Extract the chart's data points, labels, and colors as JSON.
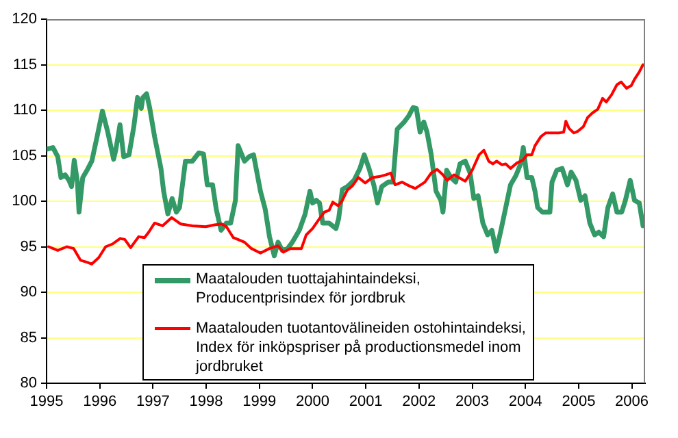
{
  "chart_data": {
    "type": "line",
    "xlim": [
      1995,
      2006.25
    ],
    "xticks": [
      1995,
      1996,
      1997,
      1998,
      1999,
      2000,
      2001,
      2002,
      2003,
      2004,
      2005,
      2006
    ],
    "ylim": [
      80,
      120
    ],
    "yticks": [
      80,
      85,
      90,
      95,
      100,
      105,
      110,
      115,
      120
    ],
    "grid": "y",
    "legend": "bottom",
    "marker": "none",
    "line_style": "solid",
    "series": [
      {
        "name": "Maatalouden tuottajahintaindeksi, Producentprisindex för jordbruk",
        "color": "#339966",
        "x": [
          1995.0,
          1995.12,
          1995.21,
          1995.27,
          1995.35,
          1995.42,
          1995.47,
          1995.52,
          1995.58,
          1995.61,
          1995.68,
          1995.76,
          1995.85,
          1995.95,
          1996.05,
          1996.15,
          1996.26,
          1996.3,
          1996.38,
          1996.45,
          1996.55,
          1996.64,
          1996.71,
          1996.78,
          1996.81,
          1996.88,
          1996.94,
          1997.03,
          1997.15,
          1997.2,
          1997.28,
          1997.36,
          1997.44,
          1997.5,
          1997.61,
          1997.74,
          1997.86,
          1997.95,
          1998.02,
          1998.12,
          1998.19,
          1998.28,
          1998.38,
          1998.46,
          1998.55,
          1998.6,
          1998.72,
          1998.81,
          1998.89,
          1999.02,
          1999.11,
          1999.19,
          1999.28,
          1999.35,
          1999.43,
          1999.53,
          1999.62,
          1999.75,
          1999.86,
          1999.95,
          2000.0,
          2000.07,
          2000.13,
          2000.19,
          2000.31,
          2000.44,
          2000.49,
          2000.56,
          2000.65,
          2000.78,
          2000.89,
          2000.97,
          2001.06,
          2001.15,
          2001.22,
          2001.3,
          2001.42,
          2001.51,
          2001.59,
          2001.72,
          2001.81,
          2001.89,
          2001.95,
          2002.02,
          2002.09,
          2002.15,
          2002.23,
          2002.32,
          2002.41,
          2002.45,
          2002.52,
          2002.6,
          2002.69,
          2002.77,
          2002.87,
          2002.96,
          2003.03,
          2003.11,
          2003.2,
          2003.29,
          2003.37,
          2003.45,
          2003.54,
          2003.63,
          2003.72,
          2003.82,
          2003.91,
          2003.96,
          2004.03,
          2004.12,
          2004.18,
          2004.23,
          2004.32,
          2004.46,
          2004.5,
          2004.59,
          2004.69,
          2004.79,
          2004.86,
          2004.95,
          2005.04,
          2005.12,
          2005.21,
          2005.3,
          2005.38,
          2005.47,
          2005.55,
          2005.64,
          2005.72,
          2005.81,
          2005.88,
          2005.97,
          2006.05,
          2006.14,
          2006.21
        ],
        "values": [
          105.7,
          105.9,
          104.9,
          102.6,
          102.9,
          102.3,
          101.6,
          104.5,
          102.1,
          98.8,
          102.6,
          103.4,
          104.4,
          107.1,
          109.9,
          107.6,
          104.6,
          105.6,
          108.4,
          104.9,
          105.1,
          108.2,
          111.4,
          110.2,
          111.4,
          111.8,
          110.2,
          107.1,
          103.6,
          101.1,
          98.6,
          100.3,
          98.8,
          99.3,
          104.4,
          104.4,
          105.3,
          105.2,
          101.8,
          101.8,
          99.1,
          96.8,
          97.6,
          97.6,
          100.1,
          106.1,
          104.4,
          104.9,
          105.1,
          101.1,
          99.1,
          96.1,
          94.0,
          95.5,
          94.6,
          94.8,
          95.5,
          96.8,
          98.6,
          101.1,
          99.8,
          100.1,
          99.8,
          97.6,
          97.6,
          97.0,
          98.1,
          101.3,
          101.6,
          102.3,
          103.6,
          105.1,
          103.6,
          101.8,
          99.8,
          101.6,
          102.1,
          102.1,
          107.9,
          108.7,
          109.4,
          110.3,
          110.2,
          107.6,
          108.7,
          107.6,
          105.1,
          101.1,
          100.1,
          98.8,
          103.4,
          102.6,
          102.1,
          104.1,
          104.4,
          103.1,
          100.3,
          100.6,
          97.6,
          96.3,
          96.8,
          94.5,
          96.8,
          99.3,
          101.8,
          102.8,
          104.1,
          105.9,
          102.6,
          102.6,
          101.1,
          99.3,
          98.8,
          98.8,
          102.1,
          103.4,
          103.6,
          101.8,
          103.2,
          102.3,
          100.1,
          100.6,
          97.6,
          96.3,
          96.6,
          96.1,
          99.3,
          100.8,
          98.8,
          98.8,
          100.1,
          102.3,
          100.1,
          99.8,
          97.3
        ]
      },
      {
        "name": "Maatalouden tuotantovälineiden ostohintaindeksi, Index för inköpspriser på productionsmedel inom jordbruket",
        "color": "#ff0000",
        "x": [
          1995.04,
          1995.21,
          1995.38,
          1995.51,
          1995.64,
          1995.76,
          1995.85,
          1995.98,
          1996.11,
          1996.24,
          1996.38,
          1996.47,
          1996.58,
          1996.73,
          1996.84,
          1996.92,
          1997.03,
          1997.18,
          1997.35,
          1997.52,
          1997.74,
          1997.99,
          1998.16,
          1998.29,
          1998.38,
          1998.51,
          1998.72,
          1998.85,
          1999.02,
          1999.19,
          1999.35,
          1999.45,
          1999.58,
          1999.71,
          1999.79,
          1999.88,
          2000.0,
          2000.13,
          2000.22,
          2000.31,
          2000.38,
          2000.48,
          2000.56,
          2000.65,
          2000.75,
          2000.86,
          2000.99,
          2001.12,
          2001.25,
          2001.38,
          2001.47,
          2001.55,
          2001.68,
          2001.81,
          2001.93,
          2002.11,
          2002.23,
          2002.34,
          2002.45,
          2002.53,
          2002.66,
          2002.75,
          2002.87,
          2003.0,
          2003.13,
          2003.22,
          2003.31,
          2003.39,
          2003.46,
          2003.56,
          2003.63,
          2003.72,
          2003.84,
          2003.95,
          2004.03,
          2004.12,
          2004.18,
          2004.29,
          2004.38,
          2004.5,
          2004.63,
          2004.72,
          2004.76,
          2004.82,
          2004.91,
          2004.99,
          2005.09,
          2005.17,
          2005.26,
          2005.36,
          2005.45,
          2005.52,
          2005.62,
          2005.72,
          2005.8,
          2005.9,
          2005.99,
          2006.05,
          2006.14,
          2006.21
        ],
        "values": [
          95.0,
          94.6,
          95.0,
          94.8,
          93.5,
          93.3,
          93.1,
          93.8,
          95.0,
          95.3,
          95.9,
          95.8,
          94.9,
          96.1,
          96.0,
          96.6,
          97.6,
          97.3,
          98.2,
          97.5,
          97.3,
          97.2,
          97.4,
          97.5,
          97.2,
          96.0,
          95.5,
          94.8,
          94.3,
          94.8,
          95.1,
          94.4,
          94.8,
          94.8,
          94.8,
          96.3,
          97.0,
          98.1,
          98.8,
          99.0,
          99.9,
          99.5,
          100.1,
          101.2,
          101.7,
          102.6,
          102.0,
          102.6,
          102.7,
          102.9,
          103.1,
          101.8,
          102.1,
          101.7,
          101.4,
          102.1,
          103.1,
          103.5,
          102.9,
          102.3,
          102.9,
          102.6,
          102.2,
          103.4,
          105.1,
          105.6,
          104.4,
          104.1,
          104.4,
          104.0,
          104.1,
          103.6,
          104.2,
          104.5,
          105.1,
          105.1,
          106.1,
          107.1,
          107.5,
          107.5,
          107.5,
          107.6,
          108.8,
          108.0,
          107.5,
          107.7,
          108.2,
          109.2,
          109.7,
          110.1,
          111.3,
          110.9,
          111.7,
          112.8,
          113.1,
          112.4,
          112.7,
          113.4,
          114.2,
          115.0
        ]
      }
    ]
  }
}
